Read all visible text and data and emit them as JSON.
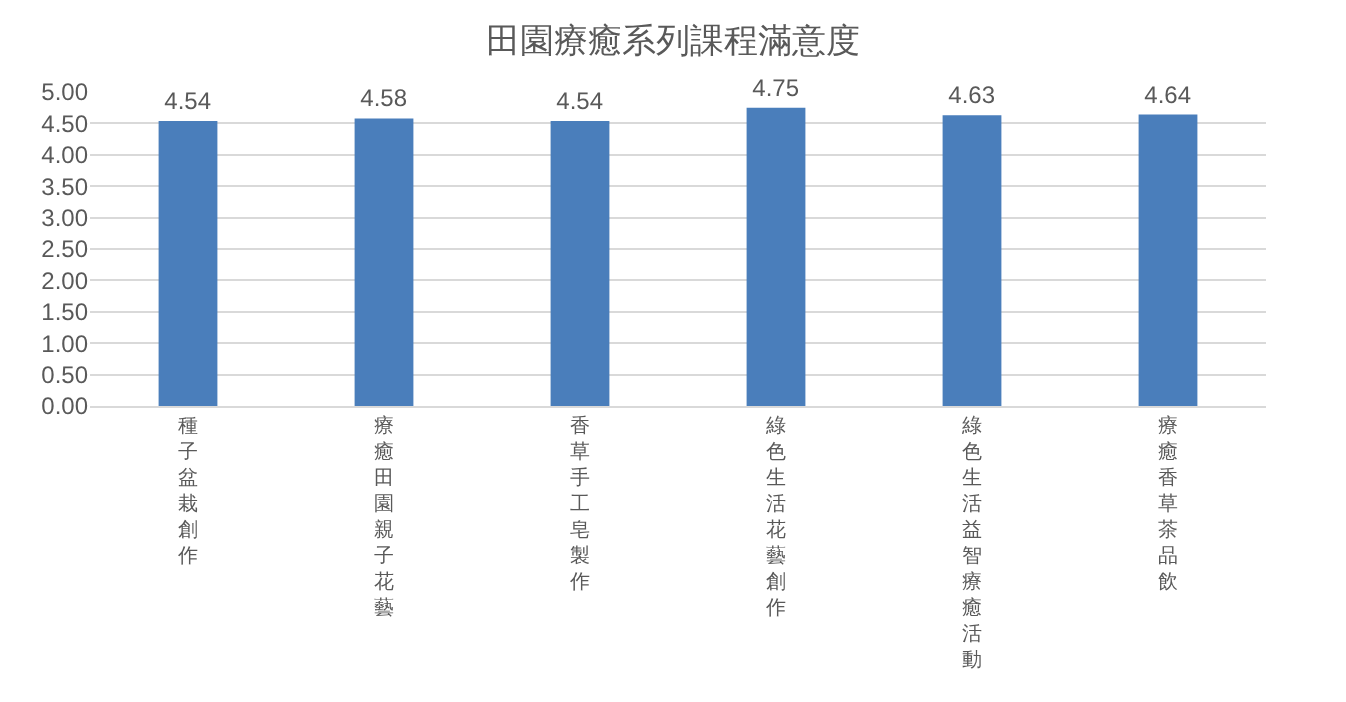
{
  "chart_data": {
    "type": "bar",
    "title": "田園療癒系列課程滿意度",
    "categories": [
      "種子盆栽創作",
      "療癒田園親子花藝",
      "香草手工皂製作",
      "綠色生活花藝創作",
      "綠色生活益智療癒活動",
      "療癒香草茶品飲"
    ],
    "values": [
      4.54,
      4.58,
      4.54,
      4.75,
      4.63,
      4.64
    ],
    "color": "#4a7ebb",
    "ylim": [
      0,
      5
    ],
    "yticks": [
      {
        "value": 0,
        "label": "0.00"
      },
      {
        "value": 0.5,
        "label": "0.50"
      },
      {
        "value": 1,
        "label": "1.00"
      },
      {
        "value": 1.5,
        "label": "1.50"
      },
      {
        "value": 2,
        "label": "2.00"
      },
      {
        "value": 2.5,
        "label": "2.50"
      },
      {
        "value": 3,
        "label": "3.00"
      },
      {
        "value": 3.5,
        "label": "3.50"
      },
      {
        "value": 4,
        "label": "4.00"
      },
      {
        "value": 4.5,
        "label": "4.50"
      },
      {
        "value": 5,
        "label": "5.00"
      }
    ],
    "grid": "y",
    "data_labels": true,
    "legend": false
  }
}
